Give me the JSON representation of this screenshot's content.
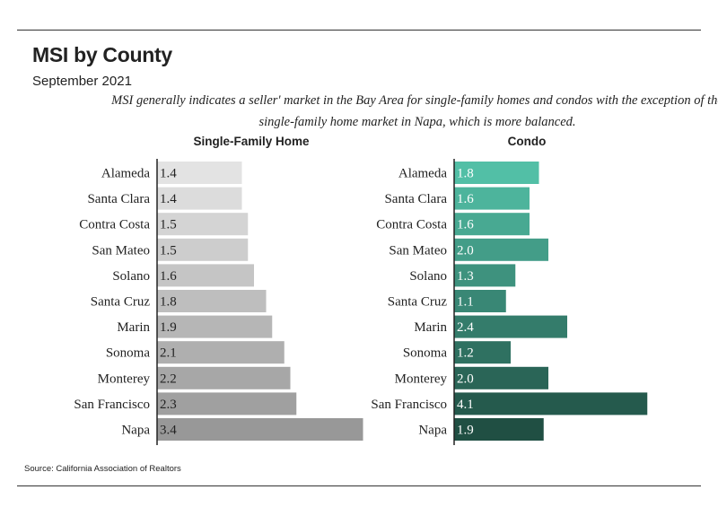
{
  "header": {
    "title": "MSI by County",
    "subtitle": "September 2021",
    "note_line1": "MSI generally indicates a seller' market in the Bay Area for single-family homes and condos with the exception of the",
    "note_line2": "single-family home market in Napa, which is more balanced."
  },
  "footer": {
    "source": "Source:  California Association of Realtors"
  },
  "colors": {
    "sfh_light": "#e3e3e3",
    "sfh_dark": "#989898",
    "condo_light": "#52bfa6",
    "condo_dark": "#204f43",
    "axis": "#222222"
  },
  "chart_data": [
    {
      "type": "bar",
      "orientation": "horizontal",
      "title": "Single-Family Home",
      "categories": [
        "Alameda",
        "Santa Clara",
        "Contra Costa",
        "San Mateo",
        "Solano",
        "Santa Cruz",
        "Marin",
        "Sonoma",
        "Monterey",
        "San Francisco",
        "Napa"
      ],
      "values": [
        1.4,
        1.4,
        1.5,
        1.5,
        1.6,
        1.8,
        1.9,
        2.1,
        2.2,
        2.3,
        3.4
      ],
      "labels": [
        "1.4",
        "1.4",
        "1.5",
        "1.5",
        "1.6",
        "1.8",
        "1.9",
        "2.1",
        "2.2",
        "2.3",
        "3.4"
      ],
      "xlim": [
        0,
        3.4
      ],
      "grid": false,
      "legend": "none"
    },
    {
      "type": "bar",
      "orientation": "horizontal",
      "title": "Condo",
      "categories": [
        "Alameda",
        "Santa Clara",
        "Contra Costa",
        "San Mateo",
        "Solano",
        "Santa Cruz",
        "Marin",
        "Sonoma",
        "Monterey",
        "San Francisco",
        "Napa"
      ],
      "values": [
        1.8,
        1.6,
        1.6,
        2.0,
        1.3,
        1.1,
        2.4,
        1.2,
        2.0,
        4.1,
        1.9
      ],
      "labels": [
        "1.8",
        "1.6",
        "1.6",
        "2.0",
        "1.3",
        "1.1",
        "2.4",
        "1.2",
        "2.0",
        "4.1",
        "1.9"
      ],
      "xlim": [
        0,
        4.1
      ],
      "grid": false,
      "legend": "none"
    }
  ]
}
